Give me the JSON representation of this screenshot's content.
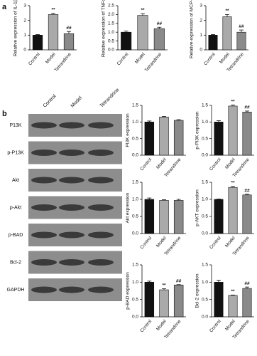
{
  "panels": [
    "a",
    "b"
  ],
  "blot": {
    "columns": [
      "Control",
      "Model",
      "Tetrandrine"
    ],
    "rows": [
      "P13K",
      "p-P13K",
      "Akt",
      "p-Akt",
      "p-BAD",
      "Bcl-2",
      "GAPDH"
    ]
  },
  "chart_data": [
    {
      "type": "bar",
      "ylabel": "Relative expression of IL-1β",
      "categories": [
        "Control",
        "Model",
        "Tetrandrine"
      ],
      "values": [
        1.0,
        2.4,
        1.1
      ],
      "errors": [
        0.04,
        0.08,
        0.15
      ],
      "significance": [
        null,
        "**",
        "##"
      ],
      "colors": [
        "#111111",
        "#aaaaaa",
        "#8a8a8a"
      ],
      "ylim": [
        0,
        3
      ],
      "yticks": [
        0,
        1,
        2,
        3
      ]
    },
    {
      "type": "bar",
      "ylabel": "Relative expression of TNFα",
      "categories": [
        "Control",
        "Model",
        "Tetrandrine"
      ],
      "values": [
        1.0,
        1.95,
        1.2
      ],
      "errors": [
        0.06,
        0.1,
        0.08
      ],
      "significance": [
        null,
        "**",
        "##"
      ],
      "colors": [
        "#111111",
        "#aaaaaa",
        "#8a8a8a"
      ],
      "ylim": [
        0,
        2.5
      ],
      "yticks": [
        {
          "value": 0,
          "label": "0.0"
        },
        {
          "value": 0.5,
          "label": "0.5"
        },
        {
          "value": 1,
          "label": "1.0"
        },
        {
          "value": 1.5,
          "label": "1.5"
        },
        {
          "value": 2,
          "label": "2.0"
        },
        {
          "value": 2.5,
          "label": "2.5"
        }
      ]
    },
    {
      "type": "bar",
      "ylabel": "Relative expression of MCP-1",
      "categories": [
        "Control",
        "Model",
        "Tetrandrine"
      ],
      "values": [
        1.0,
        2.25,
        1.2
      ],
      "errors": [
        0.04,
        0.15,
        0.15
      ],
      "significance": [
        null,
        "**",
        "##"
      ],
      "colors": [
        "#111111",
        "#aaaaaa",
        "#8a8a8a"
      ],
      "ylim": [
        0,
        3
      ],
      "yticks": [
        0,
        1,
        2,
        3
      ]
    },
    {
      "type": "bar",
      "ylabel": "PI3K expression",
      "categories": [
        "Control",
        "Model",
        "Tetrandrine"
      ],
      "values": [
        1.0,
        1.15,
        1.05
      ],
      "errors": [
        0.03,
        0.02,
        0.02
      ],
      "colors": [
        "#111111",
        "#aaaaaa",
        "#8a8a8a"
      ],
      "ylim": [
        0,
        1.5
      ],
      "yticks": [
        {
          "value": 0,
          "label": "0.0"
        },
        {
          "value": 0.5,
          "label": "0.5"
        },
        {
          "value": 1,
          "label": "1.0"
        },
        {
          "value": 1.5,
          "label": "1.5"
        }
      ]
    },
    {
      "type": "bar",
      "ylabel": "p-PI3K expression",
      "categories": [
        "Control",
        "Model",
        "Tetrandrine"
      ],
      "values": [
        1.0,
        1.48,
        1.3
      ],
      "errors": [
        0.04,
        0.03,
        0.03
      ],
      "significance": [
        null,
        "**",
        "##"
      ],
      "colors": [
        "#111111",
        "#aaaaaa",
        "#8a8a8a"
      ],
      "ylim": [
        0,
        1.5
      ],
      "yticks": [
        {
          "value": 0,
          "label": "0.0"
        },
        {
          "value": 0.5,
          "label": "0.5"
        },
        {
          "value": 1,
          "label": "1.0"
        },
        {
          "value": 1.5,
          "label": "1.5"
        }
      ]
    },
    {
      "type": "bar",
      "ylabel": "Akt expression",
      "categories": [
        "Control",
        "Model",
        "Tetrandrine"
      ],
      "values": [
        1.0,
        0.97,
        0.97
      ],
      "errors": [
        0.04,
        0.02,
        0.03
      ],
      "colors": [
        "#111111",
        "#aaaaaa",
        "#8a8a8a"
      ],
      "ylim": [
        0,
        1.5
      ],
      "yticks": [
        {
          "value": 0,
          "label": "0.0"
        },
        {
          "value": 0.5,
          "label": "0.5"
        },
        {
          "value": 1,
          "label": "1.0"
        },
        {
          "value": 1.5,
          "label": "1.5"
        }
      ]
    },
    {
      "type": "bar",
      "ylabel": "p-AKT expression",
      "categories": [
        "Control",
        "Model",
        "Tetrandrine"
      ],
      "values": [
        1.0,
        1.35,
        1.13
      ],
      "errors": [
        0.01,
        0.03,
        0.02
      ],
      "significance": [
        null,
        "**",
        "##"
      ],
      "colors": [
        "#111111",
        "#aaaaaa",
        "#8a8a8a"
      ],
      "ylim": [
        0,
        1.5
      ],
      "yticks": [
        {
          "value": 0,
          "label": "0.0"
        },
        {
          "value": 0.5,
          "label": "0.5"
        },
        {
          "value": 1,
          "label": "1.0"
        },
        {
          "value": 1.5,
          "label": "1.5"
        }
      ]
    },
    {
      "type": "bar",
      "ylabel": "p-BAD expression",
      "categories": [
        "Control",
        "Model",
        "Tetrandrine"
      ],
      "values": [
        1.0,
        0.78,
        0.92
      ],
      "errors": [
        0.03,
        0.03,
        0.01
      ],
      "significance": [
        null,
        "**",
        "##"
      ],
      "colors": [
        "#111111",
        "#aaaaaa",
        "#8a8a8a"
      ],
      "ylim": [
        0,
        1.5
      ],
      "yticks": [
        {
          "value": 0,
          "label": "0.0"
        },
        {
          "value": 0.5,
          "label": "0.5"
        },
        {
          "value": 1,
          "label": "1.0"
        },
        {
          "value": 1.5,
          "label": "1.5"
        }
      ]
    },
    {
      "type": "bar",
      "ylabel": "Bcl-2 expression",
      "categories": [
        "Control",
        "Model",
        "Tetrandrine"
      ],
      "values": [
        1.0,
        0.62,
        0.82
      ],
      "errors": [
        0.06,
        0.01,
        0.04
      ],
      "significance": [
        null,
        "**",
        "##"
      ],
      "colors": [
        "#111111",
        "#aaaaaa",
        "#8a8a8a"
      ],
      "ylim": [
        0,
        1.5
      ],
      "yticks": [
        {
          "value": 0,
          "label": "0.0"
        },
        {
          "value": 0.5,
          "label": "0.5"
        },
        {
          "value": 1,
          "label": "1.0"
        },
        {
          "value": 1.5,
          "label": "1.5"
        }
      ]
    }
  ]
}
